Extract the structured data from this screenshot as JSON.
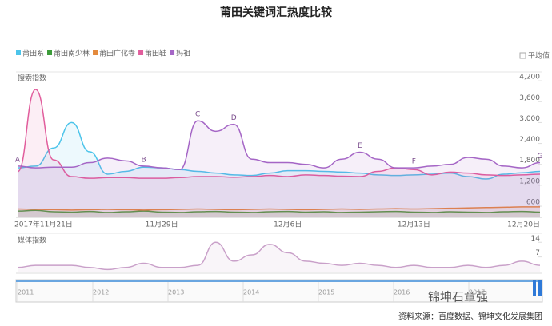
{
  "header": {
    "title": "莆田关键词汇热度比较",
    "average_toggle": "平均值"
  },
  "chart_data": [
    {
      "type": "line",
      "ylabel": "搜索指数",
      "categories": [
        "2017年11月21日",
        null,
        null,
        null,
        null,
        null,
        null,
        null,
        "11月29日",
        null,
        null,
        null,
        null,
        null,
        null,
        "12月6日",
        null,
        null,
        null,
        null,
        null,
        null,
        "12月13日",
        null,
        null,
        null,
        null,
        null,
        null,
        "12月20日"
      ],
      "ylim": [
        280,
        4340
      ],
      "yticks": [
        600,
        {
          "value": 1200,
          "label": "1,200"
        },
        {
          "value": 1800,
          "label": "1,800"
        },
        {
          "value": 2400,
          "label": "2,400"
        },
        {
          "value": 3000,
          "label": "3,000"
        },
        {
          "value": 3600,
          "label": "3,600"
        },
        {
          "value": 4200,
          "label": "4,200"
        }
      ],
      "legend": "top-left",
      "series": [
        {
          "name": "莆田系",
          "color": "#4cc4ea",
          "values": [
            1700,
            1750,
            2270,
            3000,
            2160,
            1520,
            1600,
            1720,
            1700,
            1650,
            1600,
            1550,
            1500,
            1480,
            1550,
            1620,
            1620,
            1600,
            1580,
            1550,
            1500,
            1480,
            1500,
            1520,
            1550,
            1450,
            1380,
            1520,
            1560,
            1600
          ]
        },
        {
          "name": "莆田南少林",
          "color": "#3d9c3a",
          "values": [
            460,
            480,
            440,
            430,
            450,
            420,
            440,
            460,
            430,
            420,
            440,
            450,
            430,
            420,
            440,
            450,
            430,
            440,
            420,
            430,
            440,
            450,
            430,
            420,
            440,
            430,
            420,
            440,
            450,
            430
          ]
        },
        {
          "name": "莆田广化寺",
          "color": "#e48a3c",
          "values": [
            520,
            510,
            500,
            490,
            500,
            510,
            500,
            490,
            500,
            510,
            520,
            510,
            500,
            510,
            520,
            510,
            500,
            510,
            520,
            510,
            520,
            530,
            520,
            530,
            540,
            550,
            560,
            570,
            580,
            580
          ]
        },
        {
          "name": "莆田鞋",
          "color": "#e15d9c",
          "values": [
            1590,
            3950,
            1930,
            1450,
            1400,
            1420,
            1420,
            1400,
            1400,
            1420,
            1450,
            1450,
            1430,
            1450,
            1480,
            1450,
            1500,
            1480,
            1460,
            1450,
            1600,
            1700,
            1650,
            1500,
            1580,
            1550,
            1500,
            1480,
            1500,
            1520
          ]
        },
        {
          "name": "妈祖",
          "color": "#a566c6",
          "values": [
            1750,
            1700,
            1720,
            1720,
            1850,
            1980,
            1900,
            1750,
            1700,
            1650,
            3050,
            2750,
            2950,
            1950,
            1850,
            1850,
            1800,
            1700,
            1950,
            2150,
            1950,
            1700,
            1700,
            1750,
            1800,
            2000,
            1950,
            1750,
            1700,
            1850
          ]
        }
      ],
      "annotations": [
        {
          "text": "A",
          "x": 0,
          "y": 1750
        },
        {
          "text": "B",
          "x": 7,
          "y": 1750
        },
        {
          "text": "C",
          "x": 10,
          "y": 3050
        },
        {
          "text": "D",
          "x": 12,
          "y": 2950
        },
        {
          "text": "E",
          "x": 19,
          "y": 2150
        },
        {
          "text": "F",
          "x": 22,
          "y": 1700
        },
        {
          "text": "G",
          "x": 29,
          "y": 1850
        }
      ]
    },
    {
      "type": "line",
      "ylabel": "媒体指数",
      "ylim": [
        0,
        16
      ],
      "yticks": [
        7,
        14
      ],
      "color": "#c9a0c9",
      "values": [
        2,
        3,
        3,
        3,
        2,
        1,
        2,
        4,
        2,
        2,
        3,
        14,
        5,
        8,
        13,
        9,
        5,
        4,
        3,
        4,
        3,
        2,
        3,
        2,
        2,
        3,
        2,
        3,
        5,
        3
      ]
    }
  ],
  "timeline": {
    "labels": [
      "2011",
      "2012",
      "2013",
      "2014",
      "2015",
      "2016",
      "2017"
    ]
  },
  "footer": {
    "source": "资料来源：百度数据、锦坤文化发展集团",
    "watermark": "锦坤石章强"
  }
}
